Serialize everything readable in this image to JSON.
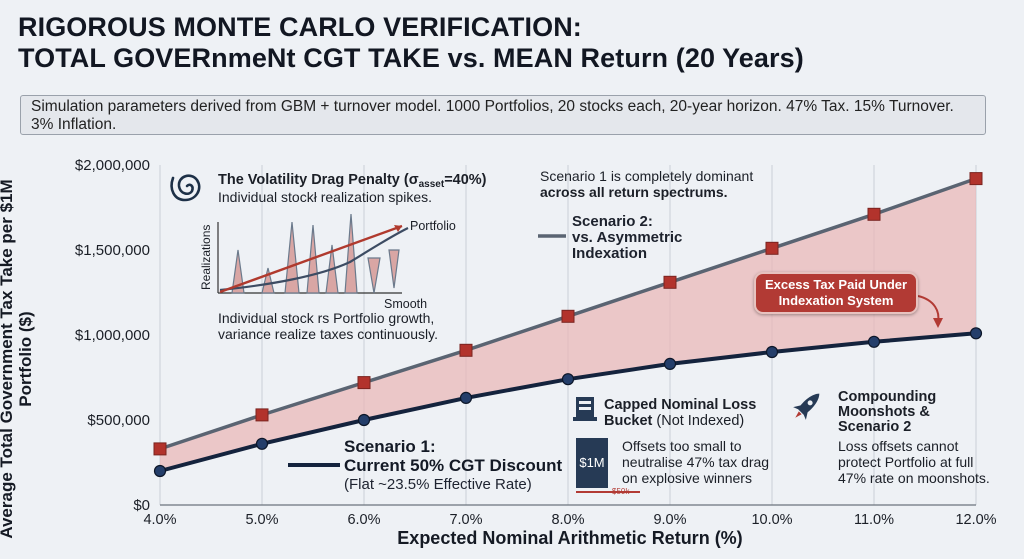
{
  "title_line1": "RIGOROUS MONTE CARLO VERIFICATION:",
  "title_line2": "TOTAL GOVERnmeNt CGT TAKE vs. MEAN Return (20 Years)",
  "params_text": "Simulation parameters derived from GBM + turnover model. 1000 Portfolios, 20 stocks each, 20-year horizon. 47% Tax. 15% Turnover. 3% Inflation.",
  "chart_data": {
    "type": "line",
    "title": "RIGOROUS MONTE CARLO VERIFICATION: TOTAL GOVERnmeNt CGT TAKE vs. MEAN Return (20 Years)",
    "xlabel": "Expected Nominal Arithmetic Return (%)",
    "ylabel": "Average Total Government Tax Take per $1M Portfolio ($)",
    "x": [
      4,
      5,
      6,
      7,
      8,
      9,
      10,
      11,
      12
    ],
    "x_tick_labels": [
      "4.0%",
      "5.0%",
      "6.0%",
      "7.0%",
      "8.0%",
      "9.0%",
      "10.0%",
      "11.0%",
      "12.0%"
    ],
    "xlim": [
      4,
      12
    ],
    "ylim": [
      0,
      2000000
    ],
    "y_ticks": [
      0,
      500000,
      1000000,
      1500000,
      2000000
    ],
    "y_tick_labels": [
      "$0",
      "$500,000",
      "$1,000,000",
      "$1,500,000",
      "$2,000,000"
    ],
    "grid": "x-vertical",
    "series": [
      {
        "name": "Scenario 2: vs. Asymmetric Indexation",
        "marker": "square",
        "color": "#5a6472",
        "marker_color": "#b2332c",
        "values": [
          330000,
          530000,
          720000,
          910000,
          1110000,
          1310000,
          1510000,
          1710000,
          1920000
        ]
      },
      {
        "name": "Scenario 1: Current 50% CGT Discount",
        "marker": "circle",
        "color": "#14233d",
        "marker_color": "#243e6a",
        "values": [
          200000,
          360000,
          500000,
          630000,
          740000,
          830000,
          900000,
          960000,
          1010000
        ]
      }
    ],
    "fill_between_color": "#e9b8b8"
  },
  "annotations": {
    "drag_title": "The Volatility Drag Penalty (σ",
    "drag_sub": "asset",
    "drag_eq": "=40%)",
    "drag_line2": "Individual stockł realization spikes.",
    "inset_realizations": "Realizations",
    "inset_portfolio": "Portfolio",
    "inset_smooth": "Smooth",
    "drag_note1": "Individual stock rs Portfolio growth,",
    "drag_note2": "variance realize taxes continuously.",
    "dominant_line1": "Scenario 1 is completely dominant",
    "dominant_line2": "across all return spectrums.",
    "s2_line1": "Scenario 2:",
    "s2_line2": "vs. Asymmetric",
    "s2_line3": "Indexation",
    "excess_line1": "Excess Tax Paid Under",
    "excess_line2": "Indexation System",
    "s1_line1": "Scenario 1:",
    "s1_line2": "Current 50% CGT Discount",
    "s1_note": "(Flat ~23.5% Effective Rate)",
    "capped_title1": "Capped Nominal Loss",
    "capped_title2": "Bucket",
    "capped_title3": "(Not Indexed)",
    "capped_note1": "Offsets too small to",
    "capped_note2": "neutralise 47% tax drag",
    "capped_note3": "on explosive winners",
    "money_1m": "$1M",
    "money_50k": "$50k",
    "moon_title1": "Compounding",
    "moon_title2": "Moonshots &",
    "moon_title3": "Scenario 2",
    "moon_note1": "Loss offsets cannot",
    "moon_note2": "protect Portfolio at full",
    "moon_note3": "47% rate on moonshots."
  },
  "icons": {
    "drag": "spiral-icon",
    "capped": "bucket-icon",
    "moon": "rocket-icon"
  }
}
